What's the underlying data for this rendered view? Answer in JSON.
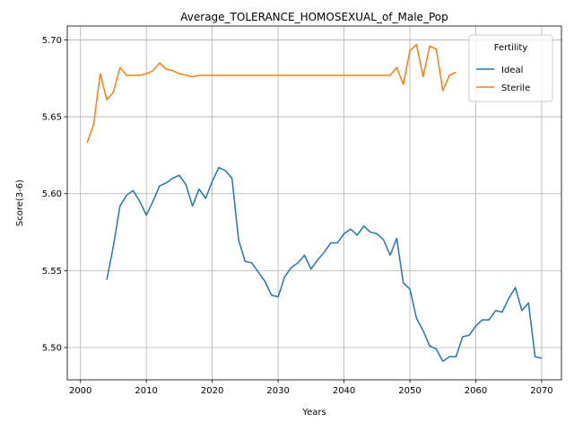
{
  "chart_data": {
    "type": "line",
    "title": "Average_TOLERANCE_HOMOSEXUAL_of_Male_Pop",
    "xlabel": "Years",
    "ylabel": "Score(3-6)",
    "xlim": [
      1998,
      2073
    ],
    "ylim": [
      5.479,
      5.709
    ],
    "xticks": [
      2000,
      2010,
      2020,
      2030,
      2040,
      2050,
      2060,
      2070
    ],
    "yticks": [
      5.5,
      5.55,
      5.6,
      5.65,
      5.7
    ],
    "ytick_labels": [
      "5.50",
      "5.55",
      "5.60",
      "5.65",
      "5.70"
    ],
    "grid": true,
    "legend": {
      "title": "Fertility",
      "position": "top-right"
    },
    "series": [
      {
        "name": "Ideal",
        "color": "#1f77b4",
        "x": [
          2004,
          2005,
          2006,
          2007,
          2008,
          2009,
          2010,
          2011,
          2012,
          2013,
          2014,
          2015,
          2016,
          2017,
          2018,
          2019,
          2020,
          2021,
          2022,
          2023,
          2024,
          2025,
          2026,
          2027,
          2028,
          2029,
          2030,
          2031,
          2032,
          2033,
          2034,
          2035,
          2036,
          2037,
          2038,
          2039,
          2040,
          2041,
          2042,
          2043,
          2044,
          2045,
          2046,
          2047,
          2048,
          2049,
          2050,
          2051,
          2052,
          2053,
          2054,
          2055,
          2056,
          2057,
          2058,
          2059,
          2060,
          2061,
          2062,
          2063,
          2064,
          2065,
          2066,
          2067,
          2068,
          2069,
          2070
        ],
        "y": [
          5.544,
          5.566,
          5.592,
          5.599,
          5.602,
          5.595,
          5.586,
          5.595,
          5.605,
          5.607,
          5.61,
          5.612,
          5.606,
          5.592,
          5.603,
          5.597,
          5.608,
          5.617,
          5.615,
          5.61,
          5.57,
          5.556,
          5.555,
          5.549,
          5.543,
          5.534,
          5.533,
          5.546,
          5.552,
          5.555,
          5.56,
          5.551,
          5.557,
          5.562,
          5.568,
          5.568,
          5.574,
          5.577,
          5.573,
          5.579,
          5.575,
          5.574,
          5.57,
          5.56,
          5.571,
          5.542,
          5.538,
          5.519,
          5.511,
          5.501,
          5.499,
          5.491,
          5.494,
          5.494,
          5.507,
          5.508,
          5.514,
          5.518,
          5.518,
          5.524,
          5.523,
          5.532,
          5.539,
          5.524,
          5.529,
          5.494,
          5.493
        ]
      },
      {
        "name": "Sterile",
        "color": "#ff7f0e",
        "x": [
          2001,
          2002,
          2003,
          2004,
          2005,
          2006,
          2007,
          2008,
          2009,
          2010,
          2011,
          2012,
          2013,
          2014,
          2015,
          2016,
          2017,
          2018,
          2019,
          2020,
          2021,
          2022,
          2023,
          2024,
          2025,
          2026,
          2027,
          2028,
          2029,
          2030,
          2031,
          2032,
          2033,
          2034,
          2035,
          2036,
          2037,
          2038,
          2039,
          2040,
          2041,
          2042,
          2043,
          2044,
          2045,
          2046,
          2047,
          2048,
          2049,
          2050,
          2051,
          2052,
          2053,
          2054,
          2055,
          2056,
          2057
        ],
        "y": [
          5.633,
          5.645,
          5.678,
          5.661,
          5.666,
          5.682,
          5.677,
          5.677,
          5.677,
          5.678,
          5.68,
          5.685,
          5.681,
          5.68,
          5.678,
          5.677,
          5.676,
          5.677,
          5.677,
          5.677,
          5.677,
          5.677,
          5.677,
          5.677,
          5.677,
          5.677,
          5.677,
          5.677,
          5.677,
          5.677,
          5.677,
          5.677,
          5.677,
          5.677,
          5.677,
          5.677,
          5.677,
          5.677,
          5.677,
          5.677,
          5.677,
          5.677,
          5.677,
          5.677,
          5.677,
          5.677,
          5.677,
          5.682,
          5.671,
          5.693,
          5.697,
          5.676,
          5.696,
          5.694,
          5.667,
          5.677,
          5.679
        ]
      }
    ]
  }
}
